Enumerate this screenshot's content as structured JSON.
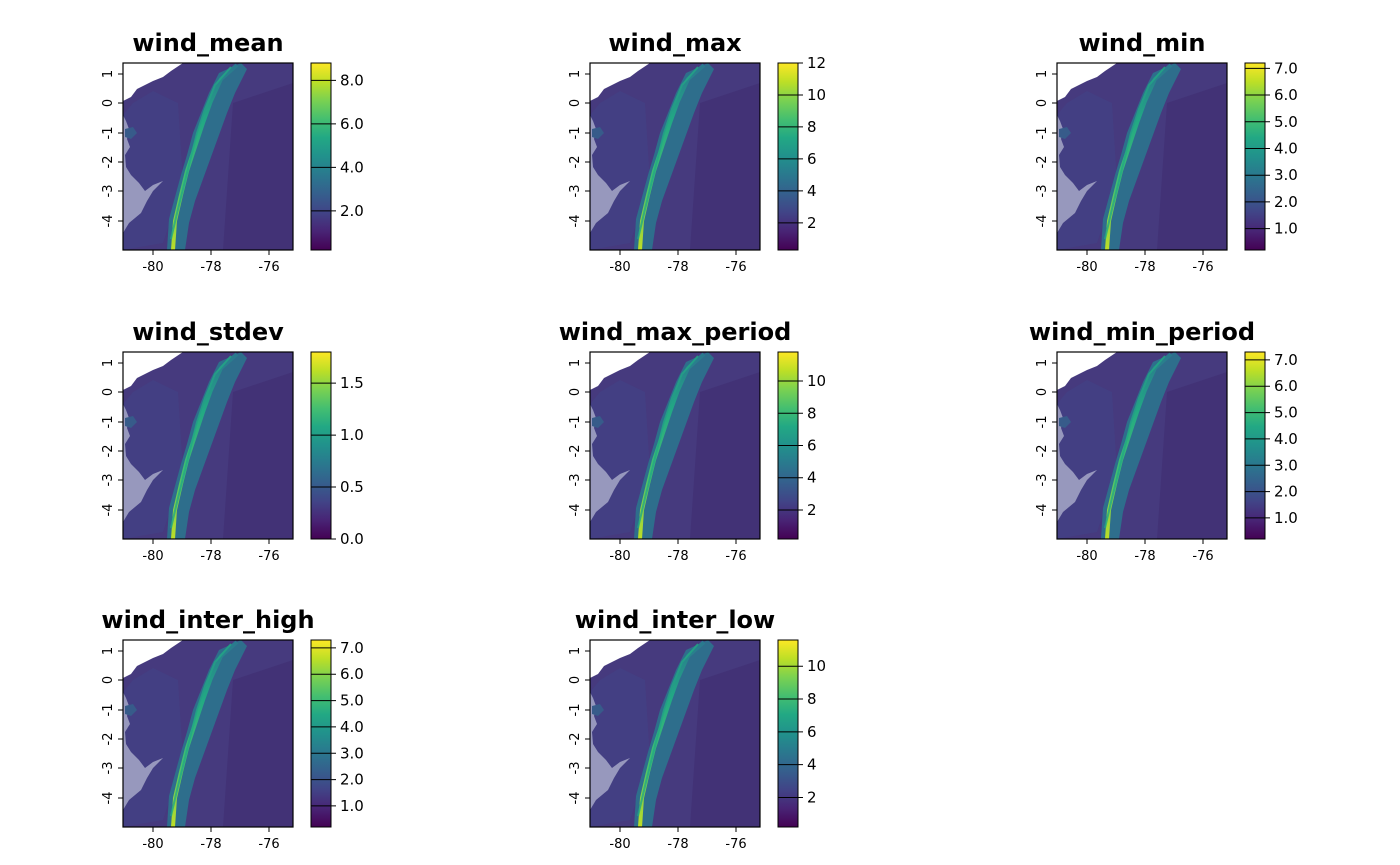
{
  "chart_data": [
    {
      "type": "heatmap",
      "title": "wind_mean",
      "xticks": [
        "-80",
        "-78",
        "-76"
      ],
      "yticks": [
        "1",
        "0",
        "-1",
        "-2",
        "-3",
        "-4"
      ],
      "xlim": [
        -81,
        -75.2
      ],
      "ylim": [
        -5,
        1.4
      ],
      "colorbar": {
        "range": [
          0.2,
          8.8
        ],
        "ticks": [
          {
            "v": 2.0,
            "label": "2.0"
          },
          {
            "v": 4.0,
            "label": "4.0"
          },
          {
            "v": 6.0,
            "label": "6.0"
          },
          {
            "v": 8.0,
            "label": "8.0"
          }
        ]
      }
    },
    {
      "type": "heatmap",
      "title": "wind_max",
      "xticks": [
        "-80",
        "-78",
        "-76"
      ],
      "yticks": [
        "1",
        "0",
        "-1",
        "-2",
        "-3",
        "-4"
      ],
      "xlim": [
        -81,
        -75.2
      ],
      "ylim": [
        -5,
        1.4
      ],
      "colorbar": {
        "range": [
          0.3,
          12.0
        ],
        "ticks": [
          {
            "v": 2,
            "label": "2"
          },
          {
            "v": 4,
            "label": "4"
          },
          {
            "v": 6,
            "label": "6"
          },
          {
            "v": 8,
            "label": "8"
          },
          {
            "v": 10,
            "label": "10"
          },
          {
            "v": 12,
            "label": "12"
          }
        ]
      }
    },
    {
      "type": "heatmap",
      "title": "wind_min",
      "xticks": [
        "-80",
        "-78",
        "-76"
      ],
      "yticks": [
        "1",
        "0",
        "-1",
        "-2",
        "-3",
        "-4"
      ],
      "xlim": [
        -81,
        -75.2
      ],
      "ylim": [
        -5,
        1.4
      ],
      "colorbar": {
        "range": [
          0.2,
          7.2
        ],
        "ticks": [
          {
            "v": 1.0,
            "label": "1.0"
          },
          {
            "v": 2.0,
            "label": "2.0"
          },
          {
            "v": 3.0,
            "label": "3.0"
          },
          {
            "v": 4.0,
            "label": "4.0"
          },
          {
            "v": 5.0,
            "label": "5.0"
          },
          {
            "v": 6.0,
            "label": "6.0"
          },
          {
            "v": 7.0,
            "label": "7.0"
          }
        ]
      }
    },
    {
      "type": "heatmap",
      "title": "wind_stdev",
      "xticks": [
        "-80",
        "-78",
        "-76"
      ],
      "yticks": [
        "1",
        "0",
        "-1",
        "-2",
        "-3",
        "-4"
      ],
      "xlim": [
        -81,
        -75.2
      ],
      "ylim": [
        -5,
        1.4
      ],
      "colorbar": {
        "range": [
          0.0,
          1.8
        ],
        "ticks": [
          {
            "v": 0.0,
            "label": "0.0"
          },
          {
            "v": 0.5,
            "label": "0.5"
          },
          {
            "v": 1.0,
            "label": "1.0"
          },
          {
            "v": 1.5,
            "label": "1.5"
          }
        ]
      }
    },
    {
      "type": "heatmap",
      "title": "wind_max_period",
      "xticks": [
        "-80",
        "-78",
        "-76"
      ],
      "yticks": [
        "1",
        "0",
        "-1",
        "-2",
        "-3",
        "-4"
      ],
      "xlim": [
        -81,
        -75.2
      ],
      "ylim": [
        -5,
        1.4
      ],
      "colorbar": {
        "range": [
          0.2,
          11.8
        ],
        "ticks": [
          {
            "v": 2,
            "label": "2"
          },
          {
            "v": 4,
            "label": "4"
          },
          {
            "v": 6,
            "label": "6"
          },
          {
            "v": 8,
            "label": "8"
          },
          {
            "v": 10,
            "label": "10"
          }
        ]
      }
    },
    {
      "type": "heatmap",
      "title": "wind_min_period",
      "xticks": [
        "-80",
        "-78",
        "-76"
      ],
      "yticks": [
        "1",
        "0",
        "-1",
        "-2",
        "-3",
        "-4"
      ],
      "xlim": [
        -81,
        -75.2
      ],
      "ylim": [
        -5,
        1.4
      ],
      "colorbar": {
        "range": [
          0.2,
          7.3
        ],
        "ticks": [
          {
            "v": 1.0,
            "label": "1.0"
          },
          {
            "v": 2.0,
            "label": "2.0"
          },
          {
            "v": 3.0,
            "label": "3.0"
          },
          {
            "v": 4.0,
            "label": "4.0"
          },
          {
            "v": 5.0,
            "label": "5.0"
          },
          {
            "v": 6.0,
            "label": "6.0"
          },
          {
            "v": 7.0,
            "label": "7.0"
          }
        ]
      }
    },
    {
      "type": "heatmap",
      "title": "wind_inter_high",
      "xticks": [
        "-80",
        "-78",
        "-76"
      ],
      "yticks": [
        "1",
        "0",
        "-1",
        "-2",
        "-3",
        "-4"
      ],
      "xlim": [
        -81,
        -75.2
      ],
      "ylim": [
        -5,
        1.4
      ],
      "colorbar": {
        "range": [
          0.2,
          7.3
        ],
        "ticks": [
          {
            "v": 1.0,
            "label": "1.0"
          },
          {
            "v": 2.0,
            "label": "2.0"
          },
          {
            "v": 3.0,
            "label": "3.0"
          },
          {
            "v": 4.0,
            "label": "4.0"
          },
          {
            "v": 5.0,
            "label": "5.0"
          },
          {
            "v": 6.0,
            "label": "6.0"
          },
          {
            "v": 7.0,
            "label": "7.0"
          }
        ]
      }
    },
    {
      "type": "heatmap",
      "title": "wind_inter_low",
      "xticks": [
        "-80",
        "-78",
        "-76"
      ],
      "yticks": [
        "1",
        "0",
        "-1",
        "-2",
        "-3",
        "-4"
      ],
      "xlim": [
        -81,
        -75.2
      ],
      "ylim": [
        -5,
        1.4
      ],
      "colorbar": {
        "range": [
          0.2,
          11.6
        ],
        "ticks": [
          {
            "v": 2,
            "label": "2"
          },
          {
            "v": 4,
            "label": "4"
          },
          {
            "v": 6,
            "label": "6"
          },
          {
            "v": 8,
            "label": "8"
          },
          {
            "v": 10,
            "label": "10"
          }
        ]
      }
    }
  ],
  "colors": {
    "palette": "viridis",
    "stops": [
      "#440154",
      "#482475",
      "#414487",
      "#355f8d",
      "#2a788e",
      "#21918c",
      "#22a884",
      "#44bf70",
      "#7ad151",
      "#bddf26",
      "#fde725"
    ],
    "background_base": "#463a7e",
    "axis": "#000000"
  }
}
